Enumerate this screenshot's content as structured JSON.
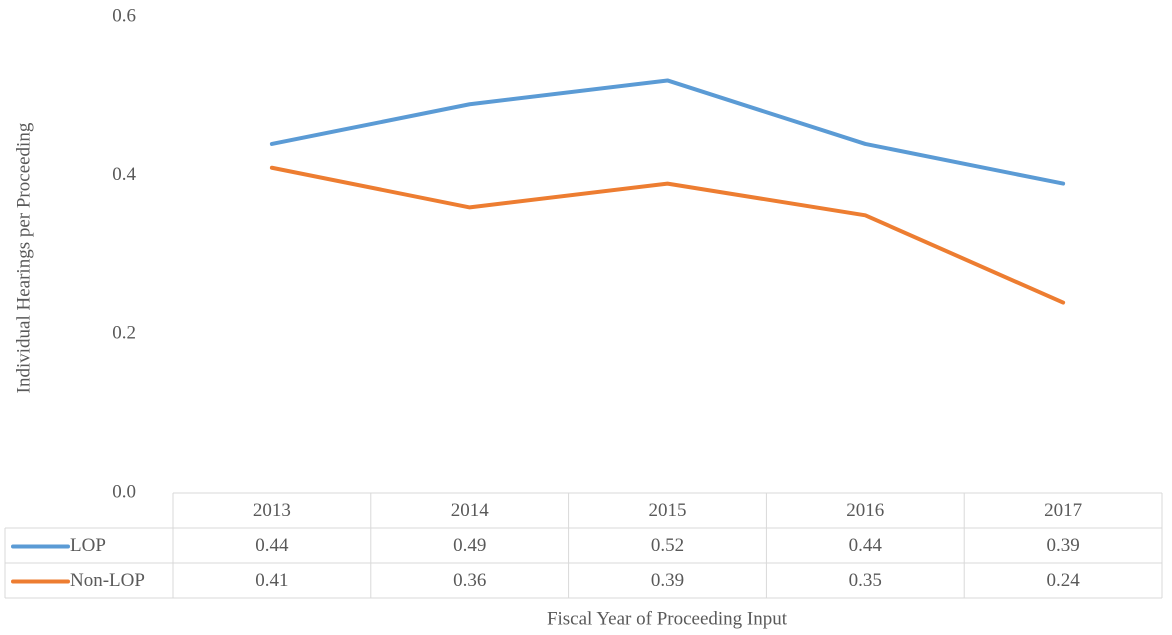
{
  "chart_data": {
    "type": "line",
    "y_label": "Individual Hearings per Proceeding",
    "x_label": "Fiscal Year of Proceeding Input",
    "categories": [
      "2013",
      "2014",
      "2015",
      "2016",
      "2017"
    ],
    "series": [
      {
        "name": "LOP",
        "color": "#5b9bd5",
        "values": [
          0.44,
          0.49,
          0.52,
          0.44,
          0.39
        ]
      },
      {
        "name": "Non-LOP",
        "color": "#ed7d31",
        "values": [
          0.41,
          0.36,
          0.39,
          0.35,
          0.24
        ]
      }
    ],
    "ylim": [
      0,
      0.6
    ],
    "yticks": [
      {
        "value": 0,
        "label": "0.0"
      },
      0.2,
      0.4,
      0.6
    ],
    "grid": false,
    "data_table": true
  }
}
